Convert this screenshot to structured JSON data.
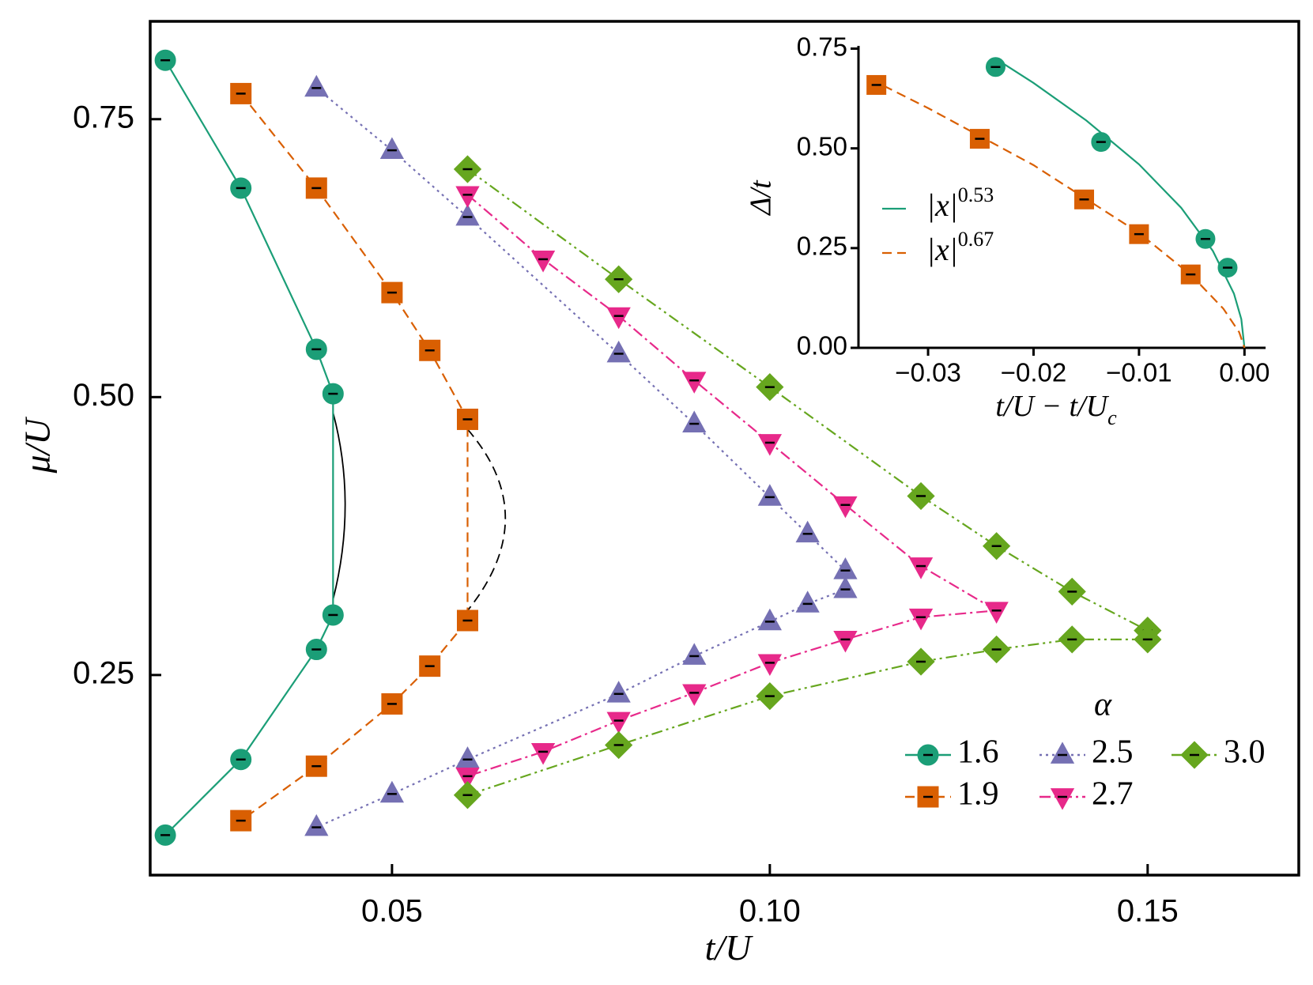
{
  "chart_data": [
    {
      "type": "line",
      "xlabel": "t/U",
      "ylabel": "μ/U",
      "xlim": [
        0.018,
        0.17
      ],
      "ylim": [
        0.07,
        0.838
      ],
      "xticks": [
        0.05,
        {
          "value": 0.1,
          "label": "0.10"
        },
        0.15
      ],
      "yticks": [
        0.25,
        {
          "value": 0.5,
          "label": "0.50"
        },
        0.75
      ],
      "frame": true,
      "tick_direction": "in",
      "legend_title": "α",
      "legend_position": "lower right",
      "series": [
        {
          "name": "1.6",
          "color": "#1b9e77",
          "marker": "circle",
          "linestyle": "solid",
          "x": [
            0.02,
            0.03,
            0.04,
            0.0422,
            0.0422,
            0.04,
            0.03,
            0.02
          ],
          "values": [
            0.803,
            0.688,
            0.543,
            0.503,
            0.304,
            0.273,
            0.174,
            0.106
          ]
        },
        {
          "name": "1.9",
          "color": "#d95f02",
          "marker": "square",
          "linestyle": "dashed",
          "x": [
            0.03,
            0.04,
            0.05,
            0.055,
            0.06,
            0.06,
            0.055,
            0.05,
            0.04,
            0.03
          ],
          "values": [
            0.773,
            0.688,
            0.594,
            0.542,
            0.48,
            0.299,
            0.258,
            0.224,
            0.168,
            0.119
          ]
        },
        {
          "name": "2.5",
          "color": "#7570b3",
          "marker": "triangle-up",
          "linestyle": "dotted",
          "x": [
            0.04,
            0.05,
            0.06,
            0.08,
            0.09,
            0.1,
            0.105,
            0.11,
            0.11,
            0.105,
            0.1,
            0.09,
            0.08,
            0.06,
            0.05,
            0.04
          ],
          "values": [
            0.778,
            0.722,
            0.662,
            0.539,
            0.476,
            0.41,
            0.377,
            0.344,
            0.327,
            0.314,
            0.298,
            0.267,
            0.233,
            0.174,
            0.143,
            0.113
          ]
        },
        {
          "name": "2.7",
          "color": "#e7298a",
          "marker": "triangle-down",
          "linestyle": "dashdot",
          "x": [
            0.06,
            0.07,
            0.08,
            0.09,
            0.1,
            0.11,
            0.12,
            0.13,
            0.12,
            0.11,
            0.1,
            0.09,
            0.08,
            0.07,
            0.06
          ],
          "values": [
            0.682,
            0.624,
            0.573,
            0.515,
            0.459,
            0.403,
            0.348,
            0.308,
            0.302,
            0.282,
            0.261,
            0.234,
            0.209,
            0.181,
            0.159
          ]
        },
        {
          "name": "3.0",
          "color": "#66a61e",
          "marker": "diamond",
          "linestyle": "dashdotdot",
          "x": [
            0.06,
            0.08,
            0.1,
            0.12,
            0.13,
            0.14,
            0.15,
            0.15,
            0.14,
            0.13,
            0.12,
            0.1,
            0.08,
            0.06
          ],
          "values": [
            0.705,
            0.606,
            0.509,
            0.411,
            0.366,
            0.325,
            0.29,
            0.282,
            0.282,
            0.273,
            0.262,
            0.231,
            0.187,
            0.142
          ]
        }
      ],
      "guide_curves": [
        {
          "color": "#000000",
          "linestyle": "solid",
          "x": [
            0.0422,
            0.0438,
            0.0422
          ],
          "values": [
            0.486,
            0.403,
            0.318
          ]
        },
        {
          "color": "#000000",
          "linestyle": "dashed",
          "x": [
            0.06,
            0.065,
            0.06
          ],
          "values": [
            0.471,
            0.391,
            0.308
          ]
        }
      ]
    },
    {
      "type": "line",
      "xlabel": "t/U − t/U",
      "xlabel_sub": "c",
      "ylabel": "Δ/t",
      "xlim": [
        -0.0366,
        0.002
      ],
      "ylim": [
        0,
        0.757
      ],
      "xticks": [
        {
          "value": -0.03,
          "label": "−0.03"
        },
        {
          "value": -0.02,
          "label": "−0.02"
        },
        {
          "value": -0.01,
          "label": "−0.01"
        },
        {
          "value": 0,
          "label": "0.00"
        }
      ],
      "yticks": [
        {
          "value": 0,
          "label": "0.00"
        },
        0.25,
        {
          "value": 0.5,
          "label": "0.50"
        },
        0.75
      ],
      "frame": false,
      "tick_direction": "out",
      "series": [
        {
          "color": "#1b9e77",
          "marker": "circle",
          "linestyle": "none",
          "x": [
            -0.0236,
            -0.0136,
            -0.0037,
            -0.0016
          ],
          "values": [
            0.704,
            0.516,
            0.273,
            0.201
          ]
        },
        {
          "color": "#d95f02",
          "marker": "square",
          "linestyle": "none",
          "x": [
            -0.0349,
            -0.0251,
            -0.0152,
            -0.01,
            -0.0051
          ],
          "values": [
            0.659,
            0.524,
            0.372,
            0.285,
            0.184
          ]
        }
      ],
      "fits": [
        {
          "name": "|x|",
          "exponent": 0.53,
          "color": "#1b9e77",
          "linestyle": "solid",
          "x": [
            -0.0236,
            -0.02,
            -0.015,
            -0.01,
            -0.006,
            -0.003,
            -0.001,
            -0.0003,
            0
          ],
          "values": [
            0.725,
            0.664,
            0.57,
            0.46,
            0.351,
            0.243,
            0.136,
            0.072,
            0
          ]
        },
        {
          "name": "|x|",
          "exponent": 0.67,
          "color": "#d95f02",
          "linestyle": "dashed",
          "x": [
            -0.0355,
            -0.03,
            -0.02,
            -0.01,
            -0.005,
            -0.002,
            -0.0005,
            0
          ],
          "values": [
            0.674,
            0.601,
            0.458,
            0.288,
            0.181,
            0.098,
            0.039,
            0
          ]
        }
      ]
    }
  ]
}
